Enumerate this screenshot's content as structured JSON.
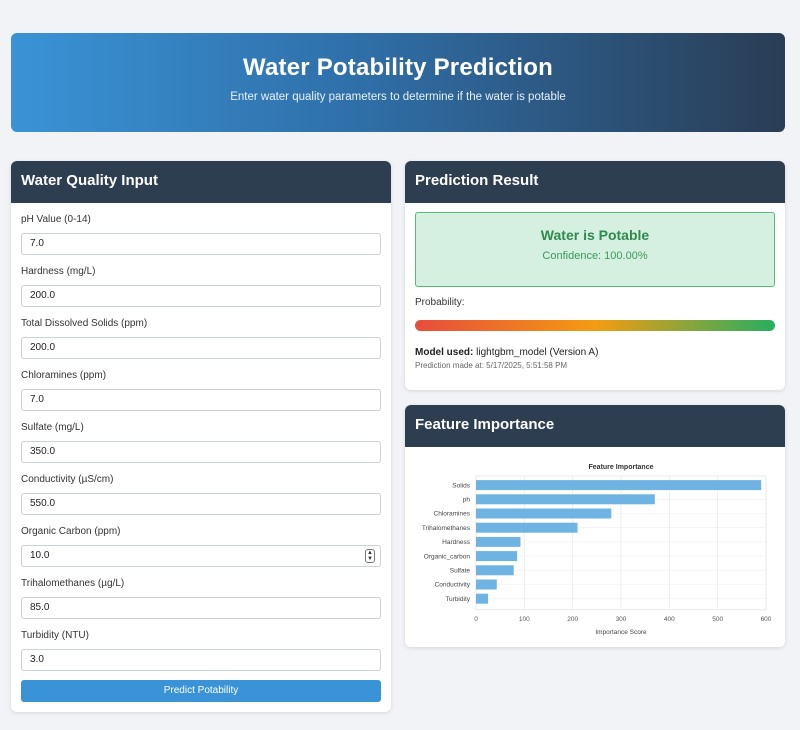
{
  "header": {
    "title": "Water Potability Prediction",
    "subtitle": "Enter water quality parameters to determine if the water is potable"
  },
  "input_card": {
    "title": "Water Quality Input",
    "fields": [
      {
        "label": "pH Value (0-14)",
        "value": "7.0"
      },
      {
        "label": "Hardness (mg/L)",
        "value": "200.0"
      },
      {
        "label": "Total Dissolved Solids (ppm)",
        "value": "200.0"
      },
      {
        "label": "Chloramines (ppm)",
        "value": "7.0"
      },
      {
        "label": "Sulfate (mg/L)",
        "value": "350.0"
      },
      {
        "label": "Conductivity (µS/cm)",
        "value": "550.0"
      },
      {
        "label": "Organic Carbon (ppm)",
        "value": "10.0"
      },
      {
        "label": "Trihalomethanes (µg/L)",
        "value": "85.0"
      },
      {
        "label": "Turbidity (NTU)",
        "value": "3.0"
      }
    ],
    "predict_button": "Predict Potability"
  },
  "result_card": {
    "title": "Prediction Result",
    "status": "Water is Potable",
    "confidence": "Confidence: 100.00%",
    "probability_label": "Probability:",
    "probability": 1.0,
    "model_used_label": "Model used:",
    "model_used_value": " lightgbm_model (Version A)",
    "prediction_time": "Prediction made at: 5/17/2025, 5:51:58 PM"
  },
  "feature_card": {
    "title": "Feature Importance"
  },
  "chart_data": {
    "type": "bar",
    "orientation": "horizontal",
    "title": "Feature Importance",
    "xlabel": "Importance Score",
    "ylabel": "",
    "categories": [
      "Solids",
      "ph",
      "Chloramines",
      "Trihalomethanes",
      "Hardness",
      "Organic_carbon",
      "Sulfate",
      "Conductivity",
      "Turbidity"
    ],
    "values": [
      590,
      370,
      280,
      210,
      92,
      85,
      78,
      43,
      25
    ],
    "xlim": [
      0,
      600
    ],
    "xticks": [
      0,
      100,
      200,
      300,
      400,
      500,
      600
    ],
    "grid": true,
    "bar_color": "#6fb3e3"
  }
}
